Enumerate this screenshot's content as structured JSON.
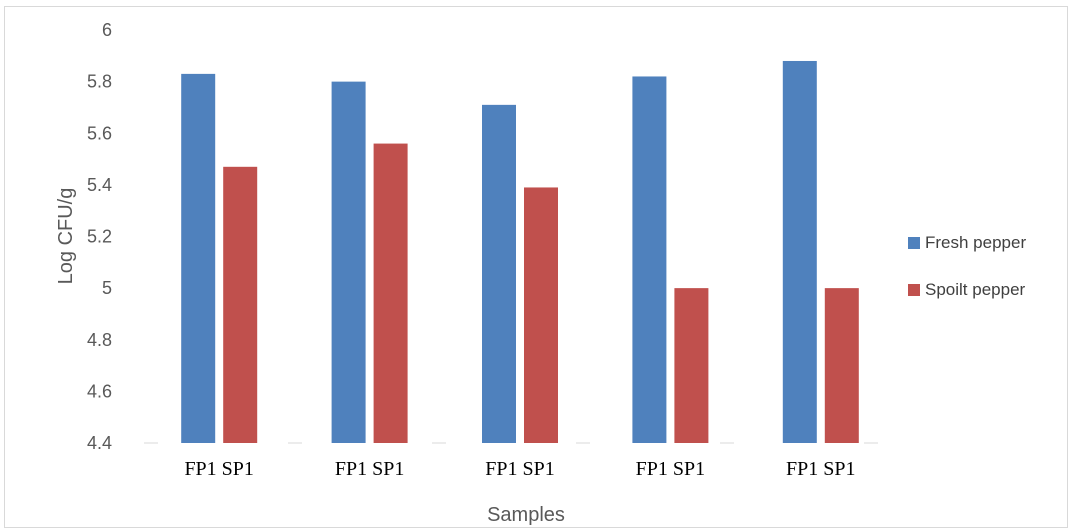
{
  "chart_data": {
    "type": "bar",
    "categories": [
      "FP1 SP1",
      "FP1 SP1",
      "FP1 SP1",
      "FP1 SP1",
      "FP1 SP1"
    ],
    "series": [
      {
        "name": "Fresh pepper",
        "color": "#4f81bd",
        "values": [
          5.83,
          5.8,
          5.71,
          5.82,
          5.88
        ]
      },
      {
        "name": "Spoilt pepper",
        "color": "#c0504d",
        "values": [
          5.47,
          5.56,
          5.39,
          5.0,
          5.0
        ]
      }
    ],
    "title": "",
    "xlabel": "Samples",
    "ylabel": "Log CFU/g",
    "ylim": [
      4.4,
      6
    ],
    "yticks": [
      "4.4",
      "4.6",
      "4.8",
      "5",
      "5.2",
      "5.4",
      "5.6",
      "5.8",
      "6"
    ],
    "grid": false,
    "legend": "right"
  }
}
